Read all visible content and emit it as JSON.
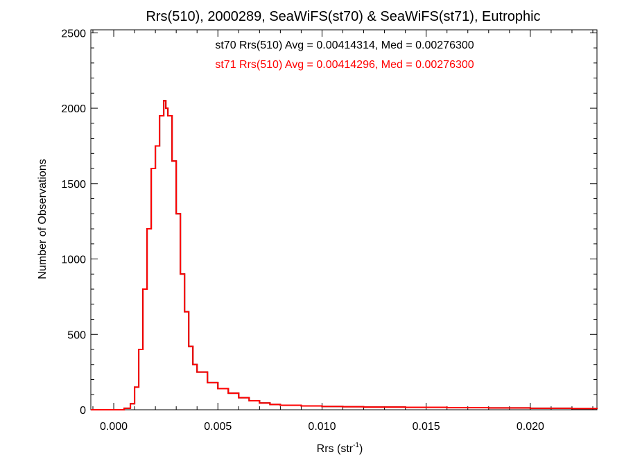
{
  "chart_data": {
    "type": "line",
    "step": true,
    "title": "Rrs(510), 2000289, SeaWiFS(st70) & SeaWiFS(st71), Eutrophic",
    "xlabel": "Rrs (str",
    "xlabel_sup": "-1",
    "xlabel_close": ")",
    "ylabel": "Number of Observations",
    "xlim": [
      -0.0011,
      0.0232
    ],
    "ylim": [
      0,
      2520
    ],
    "x_ticks": [
      0.0,
      0.005,
      0.01,
      0.015,
      0.02
    ],
    "x_tick_labels": [
      "0.000",
      "0.005",
      "0.010",
      "0.015",
      "0.020"
    ],
    "y_ticks": [
      0,
      500,
      1000,
      1500,
      2000,
      2500
    ],
    "y_tick_labels": [
      "0",
      "500",
      "1000",
      "1500",
      "2000",
      "2500"
    ],
    "annotations": [
      {
        "text": "st70 Rrs(510) Avg = 0.00414314, Med = 0.00276300",
        "color": "#000000"
      },
      {
        "text": "st71 Rrs(510) Avg = 0.00414296, Med = 0.00276300",
        "color": "#ff0000"
      }
    ],
    "series": [
      {
        "name": "st70",
        "color": "#000000",
        "x": [
          -0.0011,
          0.0005,
          0.0008,
          0.001,
          0.0012,
          0.0014,
          0.0016,
          0.0018,
          0.002,
          0.0022,
          0.0024,
          0.0025,
          0.0026,
          0.0028,
          0.003,
          0.0032,
          0.0034,
          0.0036,
          0.0038,
          0.004,
          0.0045,
          0.005,
          0.0055,
          0.006,
          0.0065,
          0.007,
          0.0075,
          0.008,
          0.009,
          0.01,
          0.011,
          0.012,
          0.014,
          0.016,
          0.018,
          0.02,
          0.022,
          0.0232
        ],
        "y": [
          0,
          10,
          40,
          150,
          400,
          800,
          1200,
          1600,
          1750,
          1950,
          2050,
          2000,
          1950,
          1650,
          1300,
          900,
          650,
          420,
          300,
          250,
          180,
          140,
          110,
          80,
          60,
          45,
          35,
          30,
          25,
          22,
          20,
          18,
          16,
          14,
          12,
          10,
          8,
          5
        ]
      },
      {
        "name": "st71",
        "color": "#ff0000",
        "x": [
          -0.0011,
          0.0005,
          0.0008,
          0.001,
          0.0012,
          0.0014,
          0.0016,
          0.0018,
          0.002,
          0.0022,
          0.0024,
          0.0025,
          0.0026,
          0.0028,
          0.003,
          0.0032,
          0.0034,
          0.0036,
          0.0038,
          0.004,
          0.0045,
          0.005,
          0.0055,
          0.006,
          0.0065,
          0.007,
          0.0075,
          0.008,
          0.009,
          0.01,
          0.011,
          0.012,
          0.014,
          0.016,
          0.018,
          0.02,
          0.022,
          0.0232
        ],
        "y": [
          0,
          10,
          40,
          150,
          400,
          800,
          1200,
          1600,
          1750,
          1950,
          2050,
          2000,
          1950,
          1650,
          1300,
          900,
          650,
          420,
          300,
          250,
          180,
          140,
          110,
          80,
          60,
          45,
          35,
          30,
          25,
          22,
          20,
          18,
          16,
          14,
          12,
          10,
          8,
          5
        ]
      }
    ]
  }
}
